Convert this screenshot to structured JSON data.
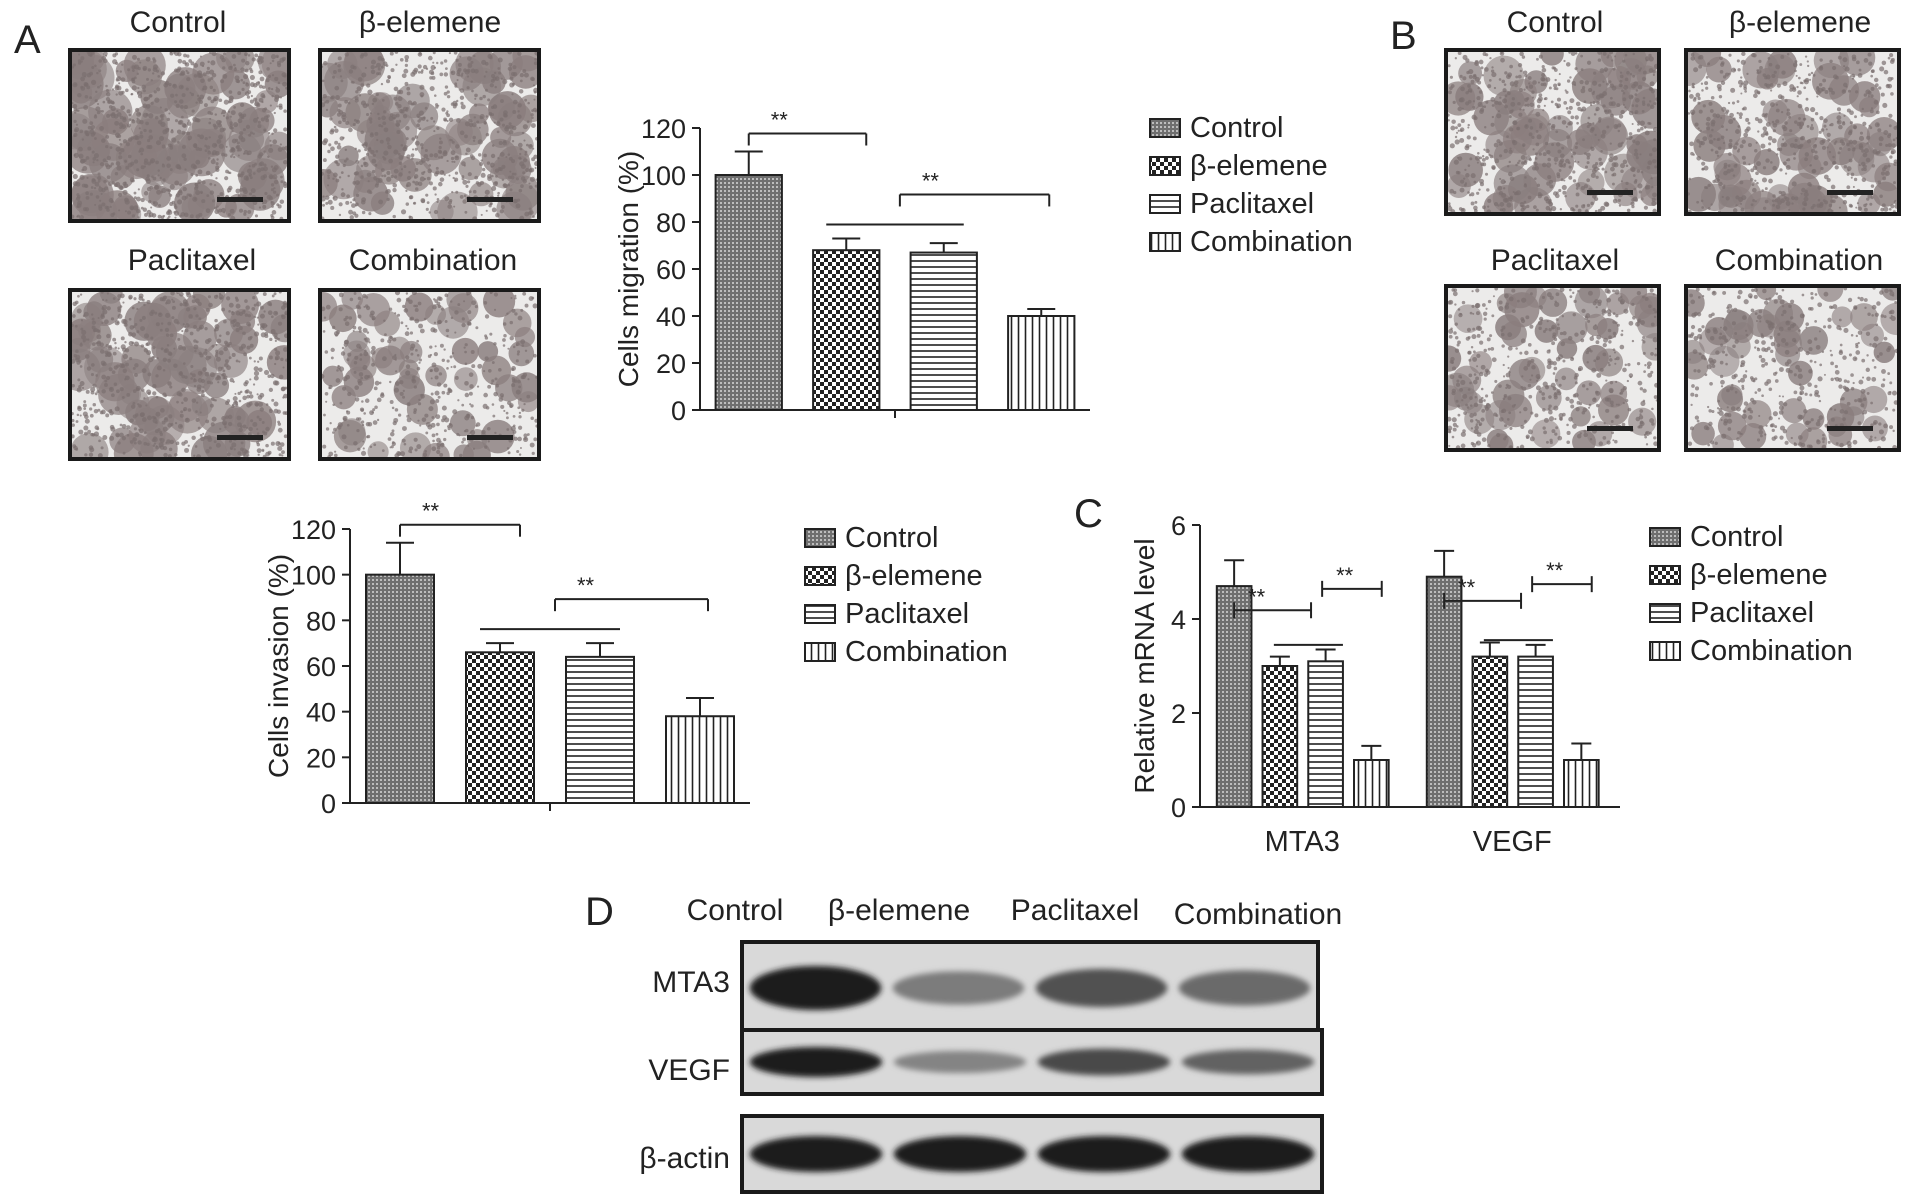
{
  "panels": {
    "a": "A",
    "b": "B",
    "c": "C",
    "d": "D"
  },
  "groups": [
    "Control",
    "β-elemene",
    "Paclitaxel",
    "Combination"
  ],
  "colors": {
    "bar_fill": "#ffffff",
    "bar_stroke": "#222222",
    "cells": "#8a7e7e",
    "cell_bg": "#ecebea"
  },
  "chart_data": [
    {
      "type": "bar",
      "categories": [
        "Control",
        "β-elemene",
        "Paclitaxel",
        "Combination"
      ],
      "values": [
        100,
        68,
        67,
        40
      ],
      "errors": [
        10,
        5,
        4,
        3
      ],
      "ylabel": "Cells migration (%)",
      "xlabel": "",
      "ylim": [
        0,
        120
      ],
      "yticks": [
        0,
        20,
        40,
        60,
        80,
        100,
        120
      ],
      "legend": [
        "Control",
        "β-elemene",
        "Paclitaxel",
        "Combination"
      ],
      "significance": "**",
      "grid": false,
      "legend_position": "right"
    },
    {
      "type": "bar",
      "categories": [
        "Control",
        "β-elemene",
        "Paclitaxel",
        "Combination"
      ],
      "values": [
        100,
        66,
        64,
        38
      ],
      "errors": [
        14,
        4,
        6,
        8
      ],
      "ylabel": "Cells invasion (%)",
      "xlabel": "",
      "ylim": [
        0,
        120
      ],
      "yticks": [
        0,
        20,
        40,
        60,
        80,
        100,
        120
      ],
      "legend": [
        "Control",
        "β-elemene",
        "Paclitaxel",
        "Combination"
      ],
      "significance": "**",
      "grid": false,
      "legend_position": "right"
    },
    {
      "type": "bar",
      "categories": [
        "MTA3",
        "VEGF"
      ],
      "series": [
        {
          "name": "Control",
          "values": [
            4.7,
            4.9
          ],
          "errors": [
            0.55,
            0.55
          ]
        },
        {
          "name": "β-elemene",
          "values": [
            3.0,
            3.2
          ],
          "errors": [
            0.2,
            0.3
          ]
        },
        {
          "name": "Paclitaxel",
          "values": [
            3.1,
            3.2
          ],
          "errors": [
            0.25,
            0.25
          ]
        },
        {
          "name": "Combination",
          "values": [
            1.0,
            1.0
          ],
          "errors": [
            0.3,
            0.35
          ]
        }
      ],
      "ylabel": "Relative mRNA level",
      "xlabel": "",
      "ylim": [
        0,
        6
      ],
      "yticks": [
        0,
        2,
        4,
        6
      ],
      "legend": [
        "Control",
        "β-elemene",
        "Paclitaxel",
        "Combination"
      ],
      "significance": "**",
      "grid": false,
      "legend_position": "right"
    }
  ],
  "blot": {
    "lanes": [
      "Control",
      "β-elemene",
      "Paclitaxel",
      "Combination"
    ],
    "rows": [
      {
        "label": "MTA3",
        "intensity": [
          1.0,
          0.45,
          0.7,
          0.55
        ]
      },
      {
        "label": "VEGF",
        "intensity": [
          1.0,
          0.4,
          0.75,
          0.6
        ]
      },
      {
        "label": "β-actin",
        "intensity": [
          1.0,
          1.0,
          1.0,
          1.0
        ]
      }
    ]
  }
}
